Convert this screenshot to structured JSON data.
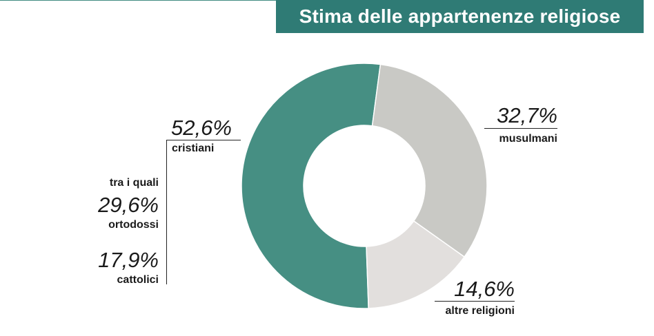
{
  "header": {
    "title": "Stima delle appartenenze religiose"
  },
  "colors": {
    "title_bg": "#2f7b75",
    "cristiani": "#468f83",
    "musulmani": "#c9c9c5",
    "altre": "#e2dfdd"
  },
  "chart_data": {
    "type": "pie",
    "variant": "donut",
    "title": "Stima delle appartenenze religiose",
    "unit": "%",
    "slices": [
      {
        "label": "cristiani",
        "value": 52.6,
        "display": "52,6%",
        "color": "#468f83"
      },
      {
        "label": "musulmani",
        "value": 32.7,
        "display": "32,7%",
        "color": "#c9c9c5"
      },
      {
        "label": "altre religioni",
        "value": 14.6,
        "display": "14,6%",
        "color": "#e2dfdd"
      }
    ],
    "breakdown": {
      "parent": "cristiani",
      "intro": "tra i quali",
      "items": [
        {
          "label": "ortodossi",
          "value": 29.6,
          "display": "29,6%"
        },
        {
          "label": "cattolici",
          "value": 17.9,
          "display": "17,9%"
        }
      ]
    }
  }
}
